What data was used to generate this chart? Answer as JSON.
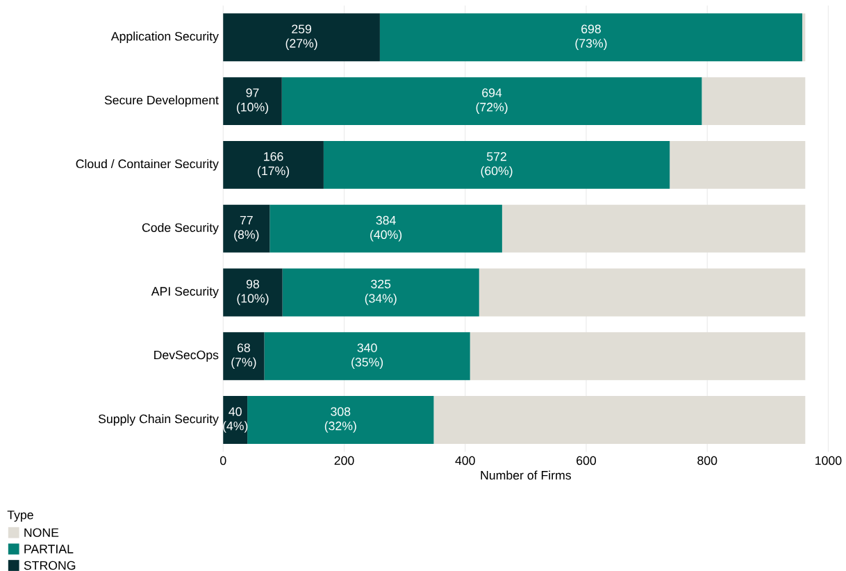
{
  "chart_data": {
    "type": "bar",
    "orientation": "horizontal",
    "stacked": true,
    "xlabel": "Number of Firms",
    "legend_title": "Type",
    "categories": [
      "Application Security",
      "Secure Development",
      "Cloud / Container Security",
      "Code Security",
      "API Security",
      "DevSecOps",
      "Supply Chain Security"
    ],
    "series": [
      {
        "name": "STRONG",
        "color": "#052e33",
        "values": [
          259,
          97,
          166,
          77,
          98,
          68,
          40
        ],
        "value_labels": [
          "259 (27%)",
          "97 (10%)",
          "166 (17%)",
          "77 (8%)",
          "98 (10%)",
          "68 (7%)",
          "40 (4%)"
        ]
      },
      {
        "name": "PARTIAL",
        "color": "#038075",
        "values": [
          698,
          694,
          572,
          384,
          325,
          340,
          308
        ],
        "value_labels": [
          "698 (73%)",
          "694 (72%)",
          "572 (60%)",
          "384 (40%)",
          "325 (34%)",
          "340 (35%)",
          "308 (32%)"
        ]
      },
      {
        "name": "NONE",
        "color": "#e0ddd5",
        "values": [
          5,
          171,
          224,
          501,
          539,
          554,
          614
        ]
      }
    ],
    "xlim": [
      0,
      1000
    ],
    "xticks": [
      0,
      200,
      400,
      600,
      800,
      1000
    ],
    "grid": "x",
    "legend": "bottom left"
  }
}
